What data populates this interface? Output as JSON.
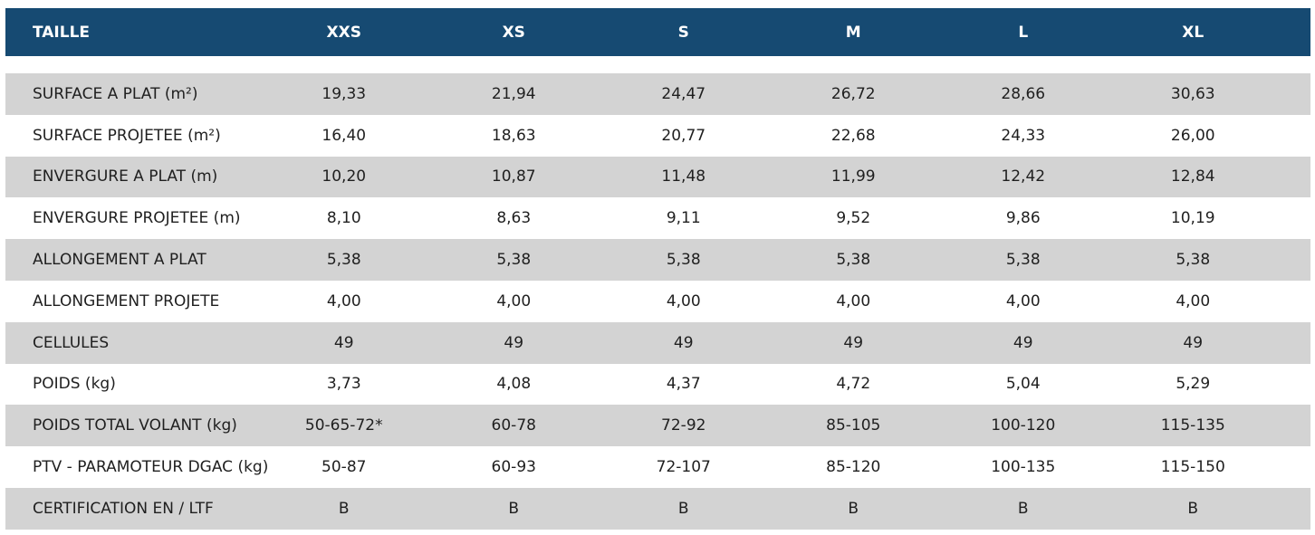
{
  "table": {
    "header": {
      "label": "TAILLE",
      "sizes": [
        "XXS",
        "XS",
        "S",
        "M",
        "L",
        "XL"
      ]
    },
    "rows": [
      {
        "label": "SURFACE A PLAT (m²)",
        "values": [
          "19,33",
          "21,94",
          "24,47",
          "26,72",
          "28,66",
          "30,63"
        ]
      },
      {
        "label": "SURFACE PROJETEE (m²)",
        "values": [
          "16,40",
          "18,63",
          "20,77",
          "22,68",
          "24,33",
          "26,00"
        ]
      },
      {
        "label": "ENVERGURE A PLAT (m)",
        "values": [
          "10,20",
          "10,87",
          "11,48",
          "11,99",
          "12,42",
          "12,84"
        ]
      },
      {
        "label": "ENVERGURE PROJETEE (m)",
        "values": [
          "8,10",
          "8,63",
          "9,11",
          "9,52",
          "9,86",
          "10,19"
        ]
      },
      {
        "label": "ALLONGEMENT A PLAT",
        "values": [
          "5,38",
          "5,38",
          "5,38",
          "5,38",
          "5,38",
          "5,38"
        ]
      },
      {
        "label": "ALLONGEMENT PROJETE",
        "values": [
          "4,00",
          "4,00",
          "4,00",
          "4,00",
          "4,00",
          "4,00"
        ]
      },
      {
        "label": "CELLULES",
        "values": [
          "49",
          "49",
          "49",
          "49",
          "49",
          "49"
        ]
      },
      {
        "label": "POIDS (kg)",
        "values": [
          "3,73",
          "4,08",
          "4,37",
          "4,72",
          "5,04",
          "5,29"
        ]
      },
      {
        "label": "POIDS TOTAL VOLANT (kg)",
        "values": [
          "50-65-72*",
          "60-78",
          "72-92",
          "85-105",
          "100-120",
          "115-135"
        ]
      },
      {
        "label": "PTV - PARAMOTEUR DGAC (kg)",
        "values": [
          "50-87",
          "60-93",
          "72-107",
          "85-120",
          "100-135",
          "115-150"
        ]
      },
      {
        "label": "CERTIFICATION EN / LTF",
        "values": [
          "B",
          "B",
          "B",
          "B",
          "B",
          "B"
        ]
      }
    ],
    "colors": {
      "header_bg": "#164a72",
      "row_shaded": "#d3d3d3",
      "row_plain": "#ffffff"
    }
  }
}
